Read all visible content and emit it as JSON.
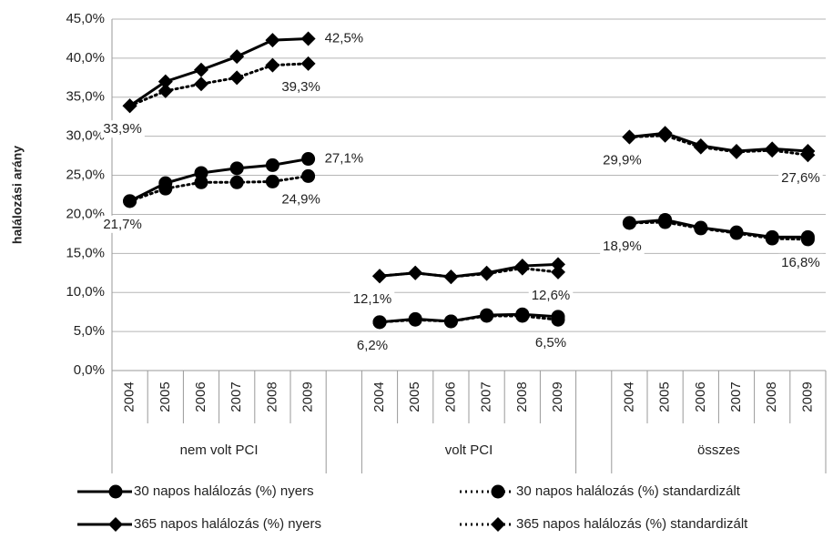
{
  "chart_data": {
    "type": "line",
    "y_label": "halálozási arány",
    "categories": [
      "2004",
      "2005",
      "2006",
      "2007",
      "2008",
      "2009",
      null,
      "2004",
      "2005",
      "2006",
      "2007",
      "2008",
      "2009",
      null,
      "2004",
      "2005",
      "2006",
      "2007",
      "2008",
      "2009"
    ],
    "groups": [
      "nem volt PCI",
      "volt PCI",
      "összes"
    ],
    "ylim": [
      0,
      45
    ],
    "yticks": [
      {
        "value": 0,
        "label": "0,0%"
      },
      {
        "value": 5,
        "label": "5,0%"
      },
      {
        "value": 10,
        "label": "10,0%"
      },
      {
        "value": 15,
        "label": "15,0%"
      },
      {
        "value": 20,
        "label": "20,0%"
      },
      {
        "value": 25,
        "label": "25,0%"
      },
      {
        "value": 30,
        "label": "30,0%"
      },
      {
        "value": 35,
        "label": "35,0%"
      },
      {
        "value": 40,
        "label": "40,0%"
      },
      {
        "value": 45,
        "label": "45,0%"
      }
    ],
    "grid": true,
    "legend": "bottom",
    "series": [
      {
        "name": "30 napos halálozás (%) nyers",
        "color": "#000000",
        "marker": "circle",
        "line_style": "solid",
        "values": [
          21.7,
          24.0,
          25.3,
          25.9,
          26.3,
          27.1,
          null,
          6.2,
          6.6,
          6.3,
          7.1,
          7.2,
          6.9,
          null,
          18.9,
          19.3,
          18.3,
          17.7,
          17.1,
          17.1
        ],
        "value_labels": [
          null,
          null,
          null,
          null,
          null,
          "27,1%",
          null,
          null,
          null,
          null,
          null,
          null,
          null,
          null,
          null,
          null,
          null,
          null,
          null,
          null
        ]
      },
      {
        "name": "30 napos halálozás (%) standardizált",
        "color": "#000000",
        "marker": "circle",
        "line_style": "dotted",
        "values": [
          21.7,
          23.3,
          24.1,
          24.1,
          24.2,
          24.9,
          null,
          6.2,
          6.5,
          6.3,
          7.0,
          7.0,
          6.5,
          null,
          18.9,
          19.0,
          18.2,
          17.6,
          16.9,
          16.8
        ],
        "value_labels": [
          "21,7%",
          null,
          null,
          null,
          null,
          "24,9%",
          null,
          "6,2%",
          null,
          null,
          null,
          null,
          "6,5%",
          null,
          "18,9%",
          null,
          null,
          null,
          null,
          "16,8%"
        ]
      },
      {
        "name": "365 napos halálozás (%) nyers",
        "color": "#000000",
        "marker": "diamond",
        "line_style": "solid",
        "values": [
          33.9,
          37.0,
          38.5,
          40.2,
          42.3,
          42.5,
          null,
          12.1,
          12.5,
          12.0,
          12.5,
          13.4,
          13.6,
          null,
          29.9,
          30.4,
          28.8,
          28.1,
          28.4,
          28.1
        ],
        "value_labels": [
          null,
          null,
          null,
          null,
          null,
          "42,5%",
          null,
          null,
          null,
          null,
          null,
          null,
          null,
          null,
          null,
          null,
          null,
          null,
          null,
          null
        ]
      },
      {
        "name": "365 napos halálozás (%) standardizált",
        "color": "#000000",
        "marker": "diamond",
        "line_style": "dotted",
        "values": [
          33.9,
          35.8,
          36.7,
          37.5,
          39.1,
          39.3,
          null,
          12.1,
          12.5,
          12.0,
          12.4,
          13.1,
          12.6,
          null,
          29.9,
          30.1,
          28.6,
          28.0,
          28.2,
          27.6
        ],
        "value_labels": [
          "33,9%",
          null,
          null,
          null,
          null,
          "39,3%",
          null,
          "12,1%",
          null,
          null,
          null,
          null,
          "12,6%",
          null,
          "29,9%",
          null,
          null,
          null,
          null,
          "27,6%"
        ]
      }
    ]
  }
}
